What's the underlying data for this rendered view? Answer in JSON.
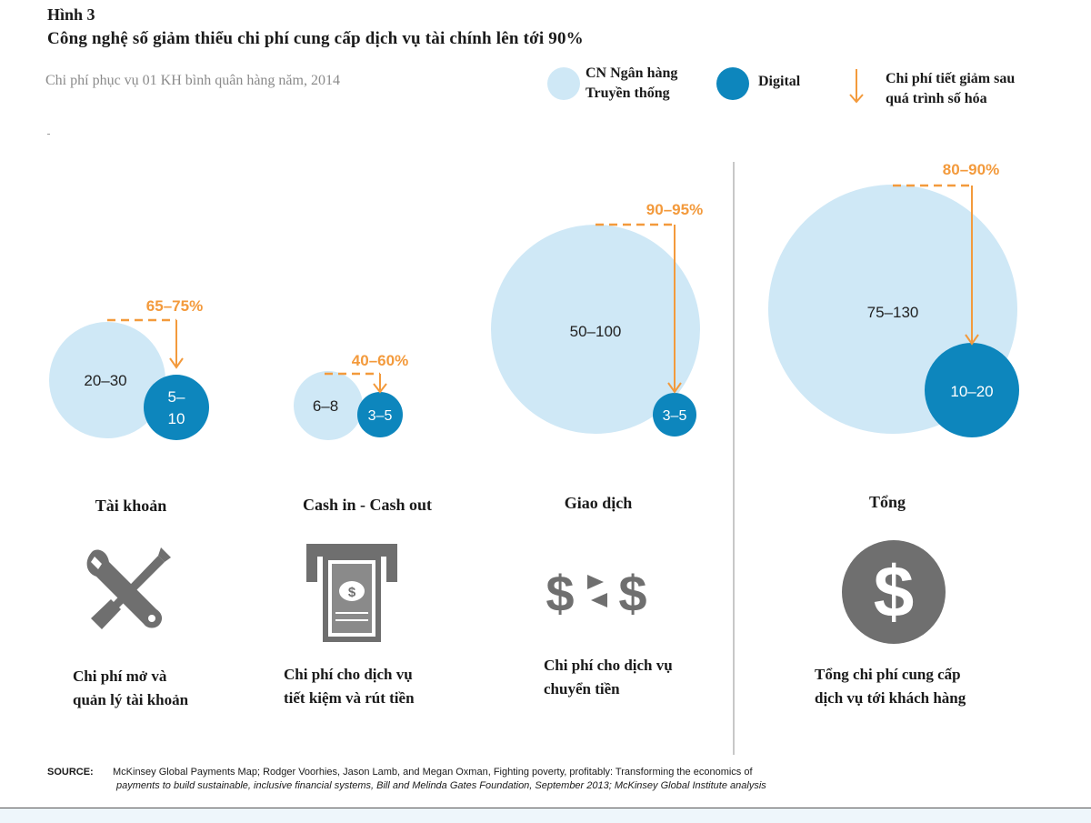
{
  "figure_label": "Hình 3",
  "title": "Công nghệ số giảm thiểu chi phí cung cấp dịch vụ tài chính lên tới 90%",
  "subtitle": "Chi phí phục vụ 01 KH bình quân hàng năm, 2014",
  "legend": {
    "traditional_line1": "CN Ngân hàng",
    "traditional_line2": "Truyền thống",
    "digital": "Digital",
    "reduction_line1": "Chi phí tiết giảm sau",
    "reduction_line2": "quá trình số hóa"
  },
  "colors": {
    "traditional": "#cfe8f6",
    "digital": "#0d86bd",
    "reduction": "#f39a3c",
    "icon_gray": "#6f6f6f",
    "divider": "#c8c8c8"
  },
  "icons": [
    "wrench-screwdriver-icon",
    "atm-cash-icon",
    "dollar-exchange-icon",
    "dollar-coin-icon"
  ],
  "chart_data": {
    "type": "bubble",
    "title": "Công nghệ số giảm thiểu chi phí cung cấp dịch vụ tài chính lên tới 90%",
    "series": [
      "CN Ngân hàng Truyền thống",
      "Digital"
    ],
    "groups": [
      {
        "category": "Tài khoản",
        "traditional_label": "20–30",
        "traditional_value": [
          20,
          30
        ],
        "digital_label_line1": "5–",
        "digital_label_line2": "10",
        "digital_value": [
          5,
          10
        ],
        "reduction_label": "65–75%",
        "desc_line1": "Chi phí mở và",
        "desc_line2": "quản lý tài khoản"
      },
      {
        "category": "Cash in - Cash out",
        "traditional_label": "6–8",
        "traditional_value": [
          6,
          8
        ],
        "digital_label": "3–5",
        "digital_value": [
          3,
          5
        ],
        "reduction_label": "40–60%",
        "desc_line1": "Chi phí cho dịch vụ",
        "desc_line2": "tiết kiệm và rút tiền"
      },
      {
        "category": "Giao dịch",
        "traditional_label": "50–100",
        "traditional_value": [
          50,
          100
        ],
        "digital_label": "3–5",
        "digital_value": [
          3,
          5
        ],
        "reduction_label": "90–95%",
        "desc_line1": "Chi phí cho dịch vụ",
        "desc_line2": "chuyển tiền"
      },
      {
        "category": "Tổng",
        "traditional_label": "75–130",
        "traditional_value": [
          75,
          130
        ],
        "digital_label": "10–20",
        "digital_value": [
          10,
          20
        ],
        "reduction_label": "80–90%",
        "desc_line1": "Tổng chi phí cung cấp",
        "desc_line2": "dịch vụ tới khách hàng"
      }
    ]
  },
  "source": {
    "label": "SOURCE:",
    "line1": "McKinsey Global Payments Map; Rodger Voorhies, Jason Lamb, and Megan Oxman, Fighting poverty, profitably: Transforming the economics of",
    "line2": "payments to build sustainable, inclusive financial systems, Bill and Melinda Gates Foundation, September 2013; McKinsey Global Institute analysis"
  }
}
